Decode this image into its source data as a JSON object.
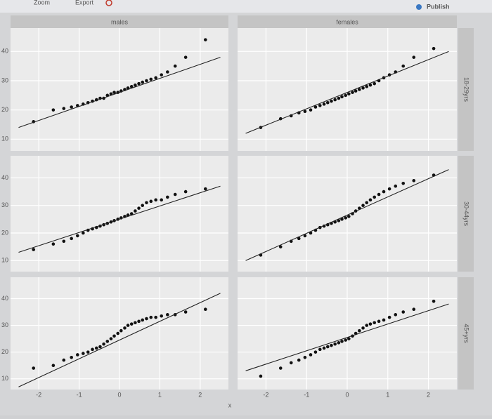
{
  "toolbar": {
    "zoom": "Zoom",
    "export": "Export",
    "publish": "Publish"
  },
  "facet_columns": [
    "males",
    "females"
  ],
  "facet_rows": [
    "18-29yrs",
    "30-44yrs",
    "45+yrs"
  ],
  "x_label": "x",
  "chart_data": [
    {
      "type": "scatter",
      "x": [
        -2.13,
        -1.64,
        -1.38,
        -1.19,
        -1.04,
        -0.9,
        -0.78,
        -0.67,
        -0.57,
        -0.48,
        -0.39,
        -0.3,
        -0.21,
        -0.13,
        -0.04,
        0.04,
        0.13,
        0.21,
        0.3,
        0.39,
        0.48,
        0.57,
        0.67,
        0.78,
        0.9,
        1.04,
        1.19,
        1.38,
        1.64,
        2.13
      ],
      "y": [
        16,
        20,
        20.5,
        21,
        21.5,
        22,
        22.5,
        23,
        23.5,
        24,
        24,
        25,
        25.5,
        26,
        26,
        26.5,
        27,
        27.5,
        28,
        28.5,
        29,
        29.5,
        30,
        30.5,
        31,
        32,
        33,
        35,
        38,
        44
      ],
      "line": {
        "x": [
          -2.5,
          2.5
        ],
        "y": [
          14,
          38
        ]
      },
      "xlim": [
        -2.7,
        2.7
      ],
      "ylim": [
        6,
        48
      ],
      "xticks": [
        -2,
        -1,
        0,
        1,
        2
      ],
      "yticks": [
        10,
        20,
        30,
        40
      ]
    },
    {
      "type": "scatter",
      "x": [
        -2.13,
        -1.64,
        -1.38,
        -1.19,
        -1.04,
        -0.9,
        -0.78,
        -0.67,
        -0.57,
        -0.48,
        -0.39,
        -0.3,
        -0.21,
        -0.13,
        -0.04,
        0.04,
        0.13,
        0.21,
        0.3,
        0.39,
        0.48,
        0.57,
        0.67,
        0.78,
        0.9,
        1.04,
        1.19,
        1.38,
        1.64,
        2.13
      ],
      "y": [
        14,
        17,
        18,
        19,
        19.5,
        20,
        21,
        21.5,
        22,
        22.5,
        23,
        23.5,
        24,
        24.5,
        25,
        25.5,
        26,
        26.5,
        27,
        27.5,
        28,
        28.5,
        29,
        30,
        31,
        32,
        33,
        35,
        38,
        41
      ],
      "line": {
        "x": [
          -2.5,
          2.5
        ],
        "y": [
          12,
          40
        ]
      },
      "xlim": [
        -2.7,
        2.7
      ],
      "ylim": [
        6,
        48
      ],
      "xticks": [
        -2,
        -1,
        0,
        1,
        2
      ],
      "yticks": [
        10,
        20,
        30,
        40
      ]
    },
    {
      "type": "scatter",
      "x": [
        -2.13,
        -1.64,
        -1.38,
        -1.19,
        -1.04,
        -0.9,
        -0.78,
        -0.67,
        -0.57,
        -0.48,
        -0.39,
        -0.3,
        -0.21,
        -0.13,
        -0.04,
        0.04,
        0.13,
        0.21,
        0.3,
        0.39,
        0.48,
        0.57,
        0.67,
        0.78,
        0.9,
        1.04,
        1.19,
        1.38,
        1.64,
        2.13
      ],
      "y": [
        14,
        16,
        17,
        18,
        19,
        20,
        21,
        21.5,
        22,
        22.5,
        23,
        23.5,
        24,
        24.5,
        25,
        25.5,
        26,
        26.5,
        27,
        28,
        29,
        30,
        31,
        31.5,
        32,
        32,
        33,
        34,
        35,
        36
      ],
      "line": {
        "x": [
          -2.5,
          2.5
        ],
        "y": [
          13,
          37
        ]
      },
      "xlim": [
        -2.7,
        2.7
      ],
      "ylim": [
        6,
        48
      ],
      "xticks": [
        -2,
        -1,
        0,
        1,
        2
      ],
      "yticks": [
        10,
        20,
        30,
        40
      ]
    },
    {
      "type": "scatter",
      "x": [
        -2.13,
        -1.64,
        -1.38,
        -1.19,
        -1.04,
        -0.9,
        -0.78,
        -0.67,
        -0.57,
        -0.48,
        -0.39,
        -0.3,
        -0.21,
        -0.13,
        -0.04,
        0.04,
        0.13,
        0.21,
        0.3,
        0.39,
        0.48,
        0.57,
        0.67,
        0.78,
        0.9,
        1.04,
        1.19,
        1.38,
        1.64,
        2.13
      ],
      "y": [
        12,
        15,
        17,
        18,
        19,
        20,
        21,
        22,
        22.5,
        23,
        23.5,
        24,
        24.5,
        25,
        25.5,
        26,
        27,
        28,
        29,
        30,
        31,
        32,
        33,
        34,
        35,
        36,
        37,
        38,
        39,
        41
      ],
      "line": {
        "x": [
          -2.5,
          2.5
        ],
        "y": [
          10,
          43
        ]
      },
      "xlim": [
        -2.7,
        2.7
      ],
      "ylim": [
        6,
        48
      ],
      "xticks": [
        -2,
        -1,
        0,
        1,
        2
      ],
      "yticks": [
        10,
        20,
        30,
        40
      ]
    },
    {
      "type": "scatter",
      "x": [
        -2.13,
        -1.64,
        -1.38,
        -1.19,
        -1.04,
        -0.9,
        -0.78,
        -0.67,
        -0.57,
        -0.48,
        -0.39,
        -0.3,
        -0.21,
        -0.13,
        -0.04,
        0.04,
        0.13,
        0.21,
        0.3,
        0.39,
        0.48,
        0.57,
        0.67,
        0.78,
        0.9,
        1.04,
        1.19,
        1.38,
        1.64,
        2.13
      ],
      "y": [
        14,
        15,
        17,
        18,
        19,
        19.5,
        20,
        21,
        21.5,
        22,
        23,
        24,
        25,
        26,
        27,
        28,
        29,
        30,
        30.5,
        31,
        31.5,
        32,
        32.5,
        33,
        33,
        33.5,
        34,
        34,
        35,
        36
      ],
      "line": {
        "x": [
          -2.5,
          2.5
        ],
        "y": [
          7,
          42
        ]
      },
      "xlim": [
        -2.7,
        2.7
      ],
      "ylim": [
        6,
        48
      ],
      "xticks": [
        -2,
        -1,
        0,
        1,
        2
      ],
      "yticks": [
        10,
        20,
        30,
        40
      ]
    },
    {
      "type": "scatter",
      "x": [
        -2.13,
        -1.64,
        -1.38,
        -1.19,
        -1.04,
        -0.9,
        -0.78,
        -0.67,
        -0.57,
        -0.48,
        -0.39,
        -0.3,
        -0.21,
        -0.13,
        -0.04,
        0.04,
        0.13,
        0.21,
        0.3,
        0.39,
        0.48,
        0.57,
        0.67,
        0.78,
        0.9,
        1.04,
        1.19,
        1.38,
        1.64,
        2.13
      ],
      "y": [
        11,
        14,
        16,
        17,
        18,
        19,
        20,
        21,
        21.5,
        22,
        22.5,
        23,
        23.5,
        24,
        24.5,
        25,
        26,
        27,
        28,
        29,
        30,
        30.5,
        31,
        31.5,
        32,
        33,
        34,
        35,
        36,
        39
      ],
      "line": {
        "x": [
          -2.5,
          2.5
        ],
        "y": [
          13,
          38
        ]
      },
      "xlim": [
        -2.7,
        2.7
      ],
      "ylim": [
        6,
        48
      ],
      "xticks": [
        -2,
        -1,
        0,
        1,
        2
      ],
      "yticks": [
        10,
        20,
        30,
        40
      ]
    }
  ]
}
